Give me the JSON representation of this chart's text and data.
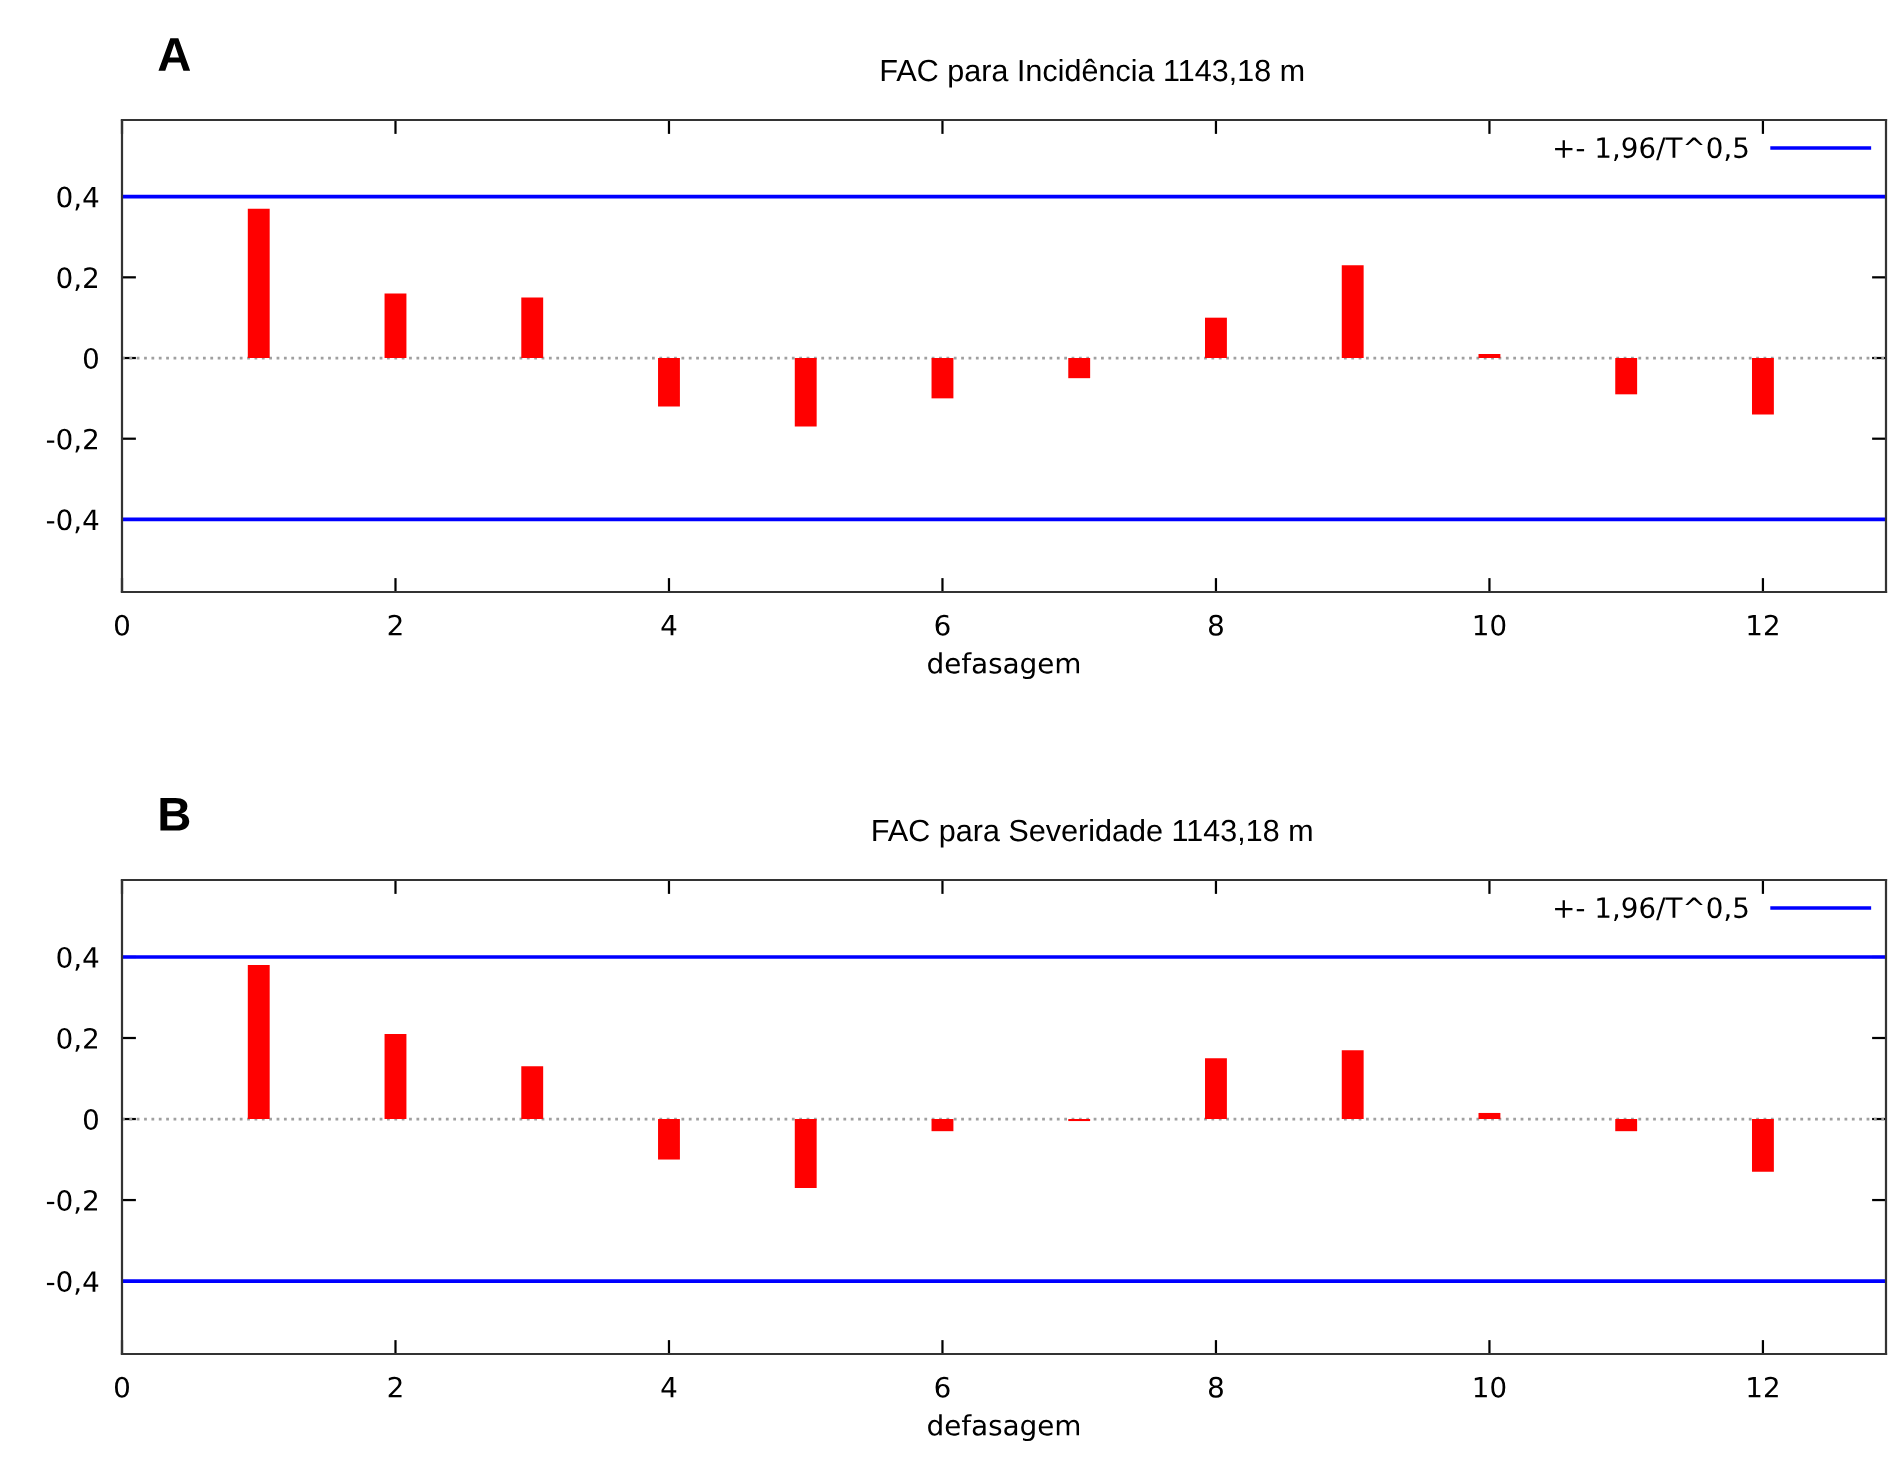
{
  "chart_data": [
    {
      "type": "bar",
      "title": "FAC para Incidência 1143,18 m",
      "xlabel": "defasagem",
      "annotations": [
        "A"
      ],
      "x": [
        1,
        2,
        3,
        4,
        5,
        6,
        7,
        8,
        9,
        10,
        11,
        12
      ],
      "series": [
        {
          "color": "#ff0000",
          "values": [
            0.37,
            0.16,
            0.15,
            -0.12,
            -0.17,
            -0.1,
            -0.05,
            0.1,
            0.23,
            0.01,
            -0.09,
            -0.14
          ]
        }
      ],
      "xlim": [
        0,
        12.9
      ],
      "xticks": [
        0,
        2,
        4,
        6,
        8,
        10,
        12
      ],
      "ylim": [
        -0.58,
        0.59
      ],
      "yticks": [
        {
          "value": -0.4,
          "label": "-0,4"
        },
        {
          "value": -0.2,
          "label": "-0,2"
        },
        0,
        {
          "value": 0.2,
          "label": "0,2"
        },
        {
          "value": 0.4,
          "label": "0,4"
        }
      ],
      "ref_lines": [
        {
          "axis": "y",
          "value": 0.4,
          "label": "+- 1,96/T^0,5",
          "color": "#0000ff"
        },
        {
          "axis": "y",
          "value": -0.4,
          "color": "#0000ff"
        },
        {
          "axis": "y",
          "value": 0,
          "color": "#a0a0a0",
          "line_style": "dotted"
        }
      ],
      "legend": "top right",
      "grid": false
    },
    {
      "type": "bar",
      "title": "FAC para Severidade 1143,18 m",
      "xlabel": "defasagem",
      "annotations": [
        "B"
      ],
      "x": [
        1,
        2,
        3,
        4,
        5,
        6,
        7,
        8,
        9,
        10,
        11,
        12
      ],
      "series": [
        {
          "color": "#ff0000",
          "values": [
            0.38,
            0.21,
            0.13,
            -0.1,
            -0.17,
            -0.03,
            -0.005,
            0.15,
            0.17,
            0.015,
            -0.03,
            -0.13
          ]
        }
      ],
      "xlim": [
        0,
        12.9
      ],
      "xticks": [
        0,
        2,
        4,
        6,
        8,
        10,
        12
      ],
      "ylim": [
        -0.58,
        0.59
      ],
      "yticks": [
        {
          "value": -0.4,
          "label": "-0,4"
        },
        {
          "value": -0.2,
          "label": "-0,2"
        },
        0,
        {
          "value": 0.2,
          "label": "0,2"
        },
        {
          "value": 0.4,
          "label": "0,4"
        }
      ],
      "ref_lines": [
        {
          "axis": "y",
          "value": 0.4,
          "label": "+- 1,96/T^0,5",
          "color": "#0000ff"
        },
        {
          "axis": "y",
          "value": -0.4,
          "color": "#0000ff"
        },
        {
          "axis": "y",
          "value": 0,
          "color": "#a0a0a0",
          "line_style": "dotted"
        }
      ],
      "legend": "top right",
      "grid": false
    }
  ]
}
